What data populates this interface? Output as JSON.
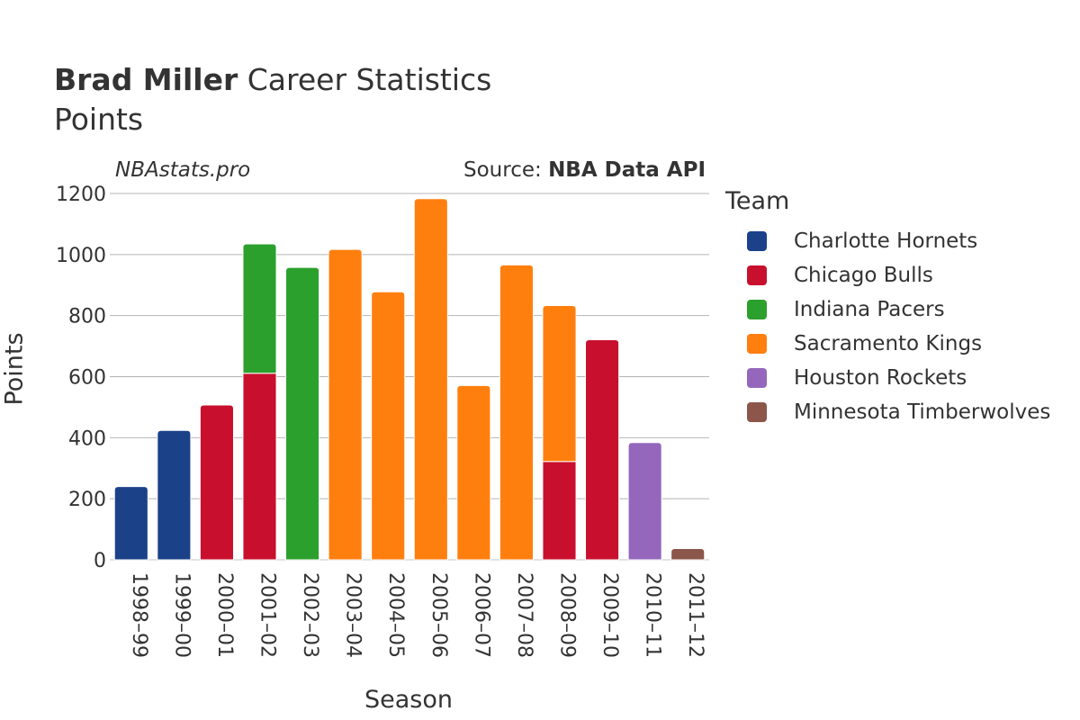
{
  "header": {
    "title_bold": "Brad Miller",
    "title_rest": "Career Statistics",
    "subtitle": "Points",
    "credit": "NBAstats.pro",
    "source_prefix": "Source:",
    "source_name": "NBA Data API"
  },
  "chart_data": {
    "type": "bar",
    "stacked": true,
    "xlabel": "Season",
    "ylabel": "Points",
    "ylim": [
      0,
      1200
    ],
    "yticks": [
      0,
      200,
      400,
      600,
      800,
      1000,
      1200
    ],
    "grid": true,
    "legend_title": "Team",
    "legend_position": "right",
    "categories": [
      "1998–99",
      "1999–00",
      "2000–01",
      "2001–02",
      "2002–03",
      "2003–04",
      "2004–05",
      "2005–06",
      "2006–07",
      "2007–08",
      "2008–09",
      "2009–10",
      "2010–11",
      "2011–12"
    ],
    "series": [
      {
        "name": "Charlotte Hornets",
        "color": "#1b4189",
        "values": [
          240,
          424,
          0,
          0,
          0,
          0,
          0,
          0,
          0,
          0,
          0,
          0,
          0,
          0
        ]
      },
      {
        "name": "Chicago Bulls",
        "color": "#c8102e",
        "values": [
          0,
          0,
          507,
          611,
          0,
          0,
          0,
          0,
          0,
          0,
          322,
          721,
          0,
          0
        ]
      },
      {
        "name": "Indiana Pacers",
        "color": "#2ca02c",
        "values": [
          0,
          0,
          0,
          424,
          958,
          0,
          0,
          0,
          0,
          0,
          0,
          0,
          0,
          0
        ]
      },
      {
        "name": "Sacramento Kings",
        "color": "#ff7f0e",
        "values": [
          0,
          0,
          0,
          0,
          0,
          1017,
          878,
          1183,
          571,
          966,
          511,
          0,
          0,
          0
        ]
      },
      {
        "name": "Houston Rockets",
        "color": "#9467bd",
        "values": [
          0,
          0,
          0,
          0,
          0,
          0,
          0,
          0,
          0,
          0,
          0,
          0,
          384,
          0
        ]
      },
      {
        "name": "Minnesota Timberwolves",
        "color": "#8c564b",
        "values": [
          0,
          0,
          0,
          0,
          0,
          0,
          0,
          0,
          0,
          0,
          0,
          0,
          0,
          37
        ]
      }
    ]
  }
}
